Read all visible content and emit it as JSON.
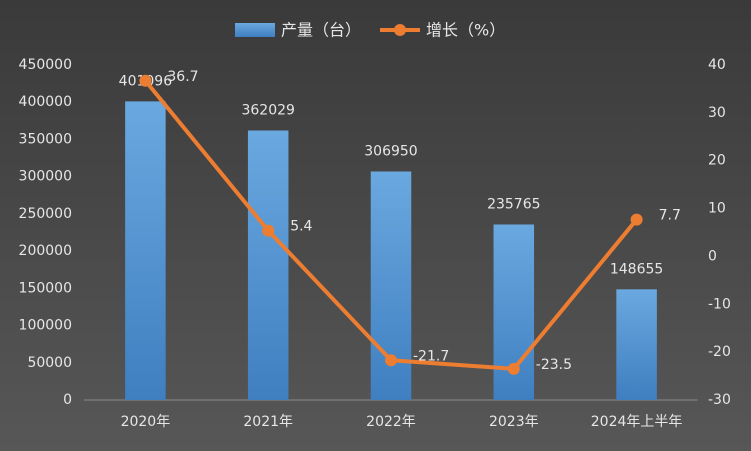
{
  "chart_data": {
    "type": "bar",
    "categories": [
      "2020年",
      "2021年",
      "2022年",
      "2023年",
      "2024年上半年"
    ],
    "series": [
      {
        "name": "产量（台）",
        "type": "bar",
        "color": "#5b9bd5",
        "values": [
          401096,
          362029,
          306950,
          235765,
          148655
        ]
      },
      {
        "name": "增长（%）",
        "type": "line",
        "axis": "y2",
        "color": "#ed7d31",
        "values": [
          36.7,
          5.4,
          -21.7,
          -23.5,
          7.7
        ]
      }
    ],
    "ylim": [
      0,
      450000
    ],
    "yticks": [
      0,
      50000,
      100000,
      150000,
      200000,
      250000,
      300000,
      350000,
      400000,
      450000
    ],
    "y2lim": [
      -30,
      40
    ],
    "y2ticks": [
      -30,
      -20,
      -10,
      0,
      10,
      20,
      30,
      40
    ],
    "grid": false,
    "legend": "top"
  }
}
